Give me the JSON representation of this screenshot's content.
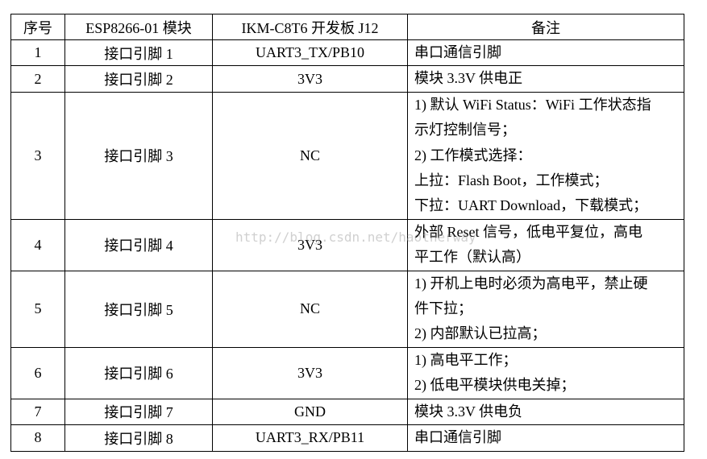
{
  "headers": [
    "序号",
    "ESP8266-01 模块",
    "IKM-C8T6 开发板 J12",
    "备注"
  ],
  "rows": [
    {
      "no": "1",
      "module": "接口引脚 1",
      "board": "UART3_TX/PB10",
      "note": [
        "串口通信引脚"
      ]
    },
    {
      "no": "2",
      "module": "接口引脚 2",
      "board": "3V3",
      "note": [
        "模块 3.3V 供电正"
      ]
    },
    {
      "no": "3",
      "module": "接口引脚 3",
      "board": "NC",
      "note": [
        "1) 默认 WiFi Status：WiFi 工作状态指",
        "示灯控制信号；",
        "2) 工作模式选择：",
        "上拉：Flash Boot，工作模式；",
        "下拉：UART Download，下载模式；"
      ]
    },
    {
      "no": "4",
      "module": "接口引脚 4",
      "board": "3V3",
      "note": [
        "外部 Reset 信号，低电平复位，高电",
        "平工作（默认高）"
      ]
    },
    {
      "no": "5",
      "module": "接口引脚 5",
      "board": "NC",
      "note": [
        "1) 开机上电时必须为高电平，禁止硬",
        "件下拉；",
        "2) 内部默认已拉高；"
      ]
    },
    {
      "no": "6",
      "module": "接口引脚 6",
      "board": "3V3",
      "note": [
        "1) 高电平工作；",
        "2) 低电平模块供电关掉；"
      ]
    },
    {
      "no": "7",
      "module": "接口引脚 7",
      "board": "GND",
      "note": [
        "模块 3.3V 供电负"
      ]
    },
    {
      "no": "8",
      "module": "接口引脚 8",
      "board": "UART3_RX/PB11",
      "note": [
        "串口通信引脚"
      ]
    }
  ],
  "watermark": "http://blog.csdn.net/haotherway"
}
